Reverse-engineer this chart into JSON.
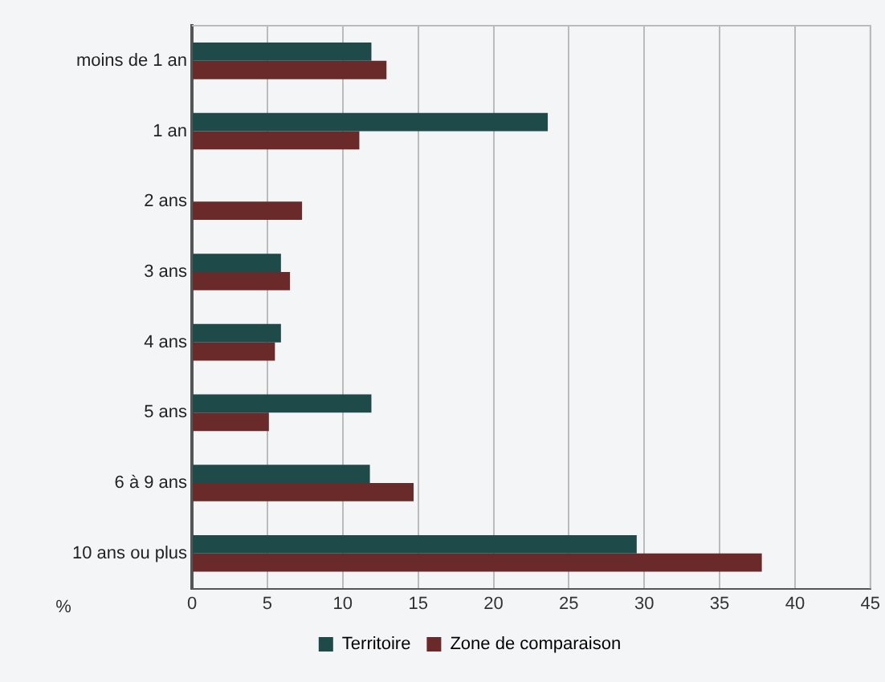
{
  "chart_data": {
    "type": "bar",
    "orientation": "horizontal",
    "xlabel": "%",
    "categories": [
      "moins de 1 an",
      "1 an",
      "2 ans",
      "3 ans",
      "4 ans",
      "5 ans",
      "6 à 9 ans",
      "10 ans ou plus"
    ],
    "series": [
      {
        "name": "Territoire",
        "color": "#1f4a4a",
        "values": [
          11.9,
          23.6,
          0,
          5.9,
          5.9,
          11.9,
          11.8,
          29.5
        ]
      },
      {
        "name": "Zone de comparaison",
        "color": "#6b2a2a",
        "values": [
          12.9,
          11.1,
          7.3,
          6.5,
          5.5,
          5.1,
          14.7,
          37.8
        ]
      }
    ],
    "xlim": [
      0,
      45
    ],
    "xticks": [
      0,
      5,
      10,
      15,
      20,
      25,
      30,
      35,
      40,
      45
    ],
    "grid": "x",
    "legend": "bottom"
  }
}
